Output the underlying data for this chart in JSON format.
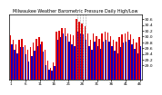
{
  "title": "Milwaukee Weather Barometric Pressure Daily High/Low",
  "bar_width": 0.45,
  "ylim": [
    28.5,
    30.75
  ],
  "yticks": [
    29.0,
    29.2,
    29.4,
    29.6,
    29.8,
    30.0,
    30.2,
    30.4,
    30.6
  ],
  "high_color": "#dd0000",
  "low_color": "#0000cc",
  "background_color": "#ffffff",
  "highs": [
    30.05,
    29.88,
    29.72,
    29.9,
    29.92,
    29.7,
    29.55,
    29.65,
    29.78,
    29.93,
    29.98,
    29.82,
    29.55,
    29.15,
    28.92,
    29.1,
    30.18,
    30.2,
    30.28,
    30.28,
    30.12,
    30.08,
    30.05,
    30.62,
    30.52,
    30.45,
    30.35,
    30.12,
    29.88,
    30.1,
    30.02,
    29.92,
    30.12,
    30.18,
    30.15,
    30.02,
    29.88,
    29.82,
    29.98,
    30.08,
    30.12,
    30.18,
    30.08,
    29.92,
    29.78,
    29.98
  ],
  "lows": [
    29.72,
    29.55,
    29.42,
    29.62,
    29.65,
    29.38,
    29.12,
    29.32,
    29.52,
    29.68,
    29.72,
    29.48,
    29.02,
    28.85,
    28.82,
    28.98,
    29.88,
    29.98,
    30.1,
    30.02,
    29.82,
    29.72,
    29.68,
    30.18,
    30.12,
    30.08,
    29.9,
    29.68,
    29.55,
    29.82,
    29.68,
    29.58,
    29.82,
    29.9,
    29.82,
    29.68,
    29.52,
    29.42,
    29.65,
    29.78,
    29.82,
    29.9,
    29.72,
    29.58,
    29.42,
    29.68
  ],
  "n_days": 46,
  "dash_region": [
    23,
    24,
    25,
    26
  ]
}
